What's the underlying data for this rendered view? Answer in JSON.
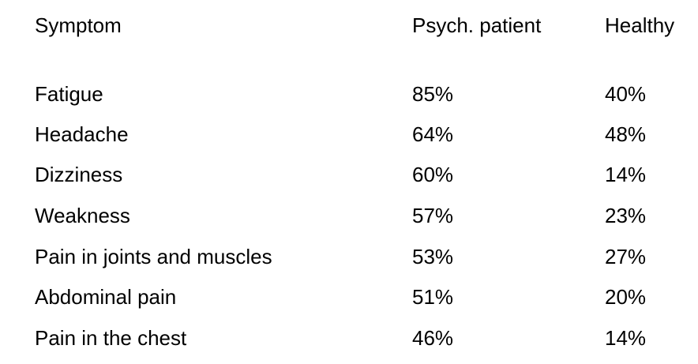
{
  "headers": {
    "symptom": "Symptom",
    "patient": "Psych. patient",
    "healthy": "Healthy"
  },
  "rows": [
    {
      "symptom": "Fatigue",
      "patient": "85%",
      "healthy": "40%"
    },
    {
      "symptom": "Headache",
      "patient": "64%",
      "healthy": "48%"
    },
    {
      "symptom": "Dizziness",
      "patient": "60%",
      "healthy": "14%"
    },
    {
      "symptom": "Weakness",
      "patient": "57%",
      "healthy": "23%"
    },
    {
      "symptom": "Pain in joints and muscles",
      "patient": "53%",
      "healthy": "27%"
    },
    {
      "symptom": "Abdominal pain",
      "patient": "51%",
      "healthy": "20%"
    },
    {
      "symptom": "Pain in the chest",
      "patient": "46%",
      "healthy": "14%"
    }
  ]
}
